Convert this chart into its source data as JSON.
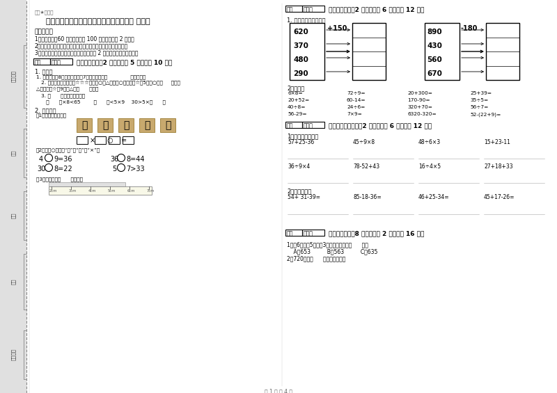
{
  "bg_color": "#ffffff",
  "title": "宝鸡市二年级数学上学期全真模拟考试试题 附答案",
  "subtitle": "微圈★自用圈",
  "exam_notes_title": "考试须知：",
  "exam_notes": [
    "1、考试时间：60 分钟，满分为 100 分（含卷面分 2 分）。",
    "2、请首先按要求在试卷的指定位置填写您的姓名、班级、学号。",
    "3、不要在试卷上乱写乱画，卷面不整洁才 2 分，密封线外请勿作答。"
  ],
  "section1_title": "一、填空题（共2 大题，每题 5 分，共计 10 分）",
  "section1_q1_title": "1. 填空。",
  "section1_q1_1": "1. 一个因数是8，另一个因数是7，列成算式是（              ），读作（",
  "section1_q1_2": "   2. 小圆在图画本上画了☆☆☆和一些○和△，其中○的个数是☆的5倍，○有（     ）个，",
  "section1_q1_3": "△的个数是☆的9倍，△有（      ）个。",
  "section1_q1_4": "   3. （      ）里最大能填几？",
  "section1_q1_5": "      （      ）×8<65        （      ）<5×9    30>5×（      ）",
  "section1_q2_title": "2. 填一填。",
  "section1_q2_1": "（1）、看图填算式：",
  "section1_q2_2": "（2）、在○里填上“＋”、“－”或“×”。",
  "section1_q2_7": "（3）、纸条长（      ）厘米。",
  "section2_title": "二、计算题（共2 大题，每题 6 分，共计 12 分）",
  "section2_q1_title": "1. 看谁算的又对又快。",
  "left_numbers": [
    "620",
    "370",
    "480",
    "290"
  ],
  "left_op": "+150",
  "right_numbers": [
    "890",
    "430",
    "560",
    "670"
  ],
  "right_op": "-180",
  "section2_q2_title": "2、口算。",
  "oral_col1": [
    "6×8=",
    "20+52=",
    "40÷8=",
    "56-29="
  ],
  "oral_col2": [
    "72÷9=",
    "60-14=",
    "24÷6=",
    "7×9="
  ],
  "oral_col3": [
    "20+300=",
    "170-90=",
    "320+70=",
    "6320-320="
  ],
  "oral_col4": [
    "25+39=",
    "35÷5=",
    "56÷7=",
    "52-(22+9)="
  ],
  "section3_title": "三、列竖式计算（共2 大题，每题 6 分，共计 12 分）",
  "section3_q1_title": "1、列竖式算一算。",
  "vertical_row1": [
    "57+25-36",
    "45÷9×8",
    "48÷6×3",
    "15+23-11"
  ],
  "vertical_row2": [
    "36÷9×4",
    "78-52+43",
    "16÷4×5",
    "27+18+33"
  ],
  "section3_q2_title": "2、竖式计算。",
  "column_calc": [
    "54+ 31-39=",
    "85-18-36=",
    "46+25-34=",
    "45+17-26="
  ],
  "section4_title": "四、选一选（共8 小题，每题 2 分，共计 16 分）",
  "section4_q1": "1、〖6个十〗5个百〗3个一组成的数是（      ）。",
  "section4_q1_opts": "    A、653          B、563          C、635",
  "section4_q2": "2、720是由（      ）个十组成的。",
  "footer": "第 1 页 共 4 页",
  "defen_label": "得分",
  "pingjuan_label": "评卷人",
  "sidebar_labels": [
    "准考证号",
    "姓名",
    "班级",
    "学校",
    "装（撕）"
  ]
}
